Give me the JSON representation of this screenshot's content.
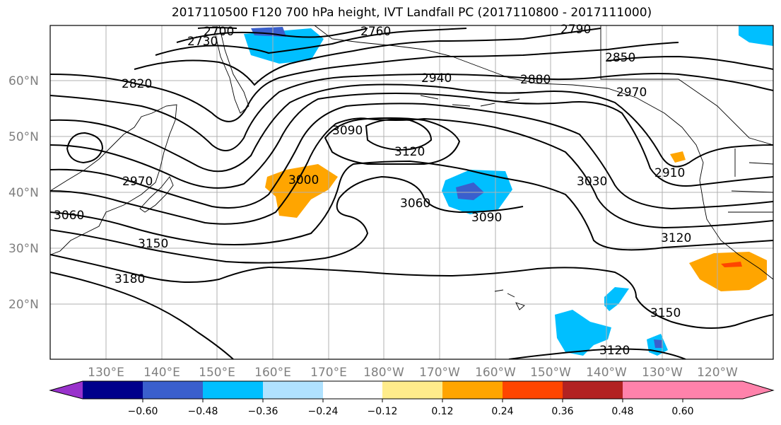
{
  "title": "2017110500 F120 700 hPa height, IVT Landfall PC (2017110800 - 2017111000)",
  "lat_labels": [
    "60°N",
    "50°N",
    "40°N",
    "30°N",
    "20°N"
  ],
  "lon_labels": [
    "130°E",
    "140°E",
    "150°E",
    "160°E",
    "170°E",
    "180°W",
    "170°W",
    "160°W",
    "150°W",
    "140°W",
    "130°W",
    "120°W"
  ],
  "contour_labels": [
    "2700",
    "2730",
    "2760",
    "2790",
    "2850",
    "2820",
    "2940",
    "2880",
    "2970",
    "3090",
    "3120",
    "3000",
    "2910",
    "3030",
    "2970",
    "3060",
    "3060",
    "3090",
    "3120",
    "3150",
    "3180",
    "3150",
    "3120"
  ],
  "colorbar": {
    "colors": [
      "#9932cc",
      "#00008b",
      "#3a5fcd",
      "#00bfff",
      "#b0e2ff",
      "#ffffff",
      "#ffec8b",
      "#ffa500",
      "#ff4500",
      "#b22222",
      "#ff82ab"
    ],
    "tick_labels": [
      "−0.60",
      "−0.48",
      "−0.36",
      "−0.24",
      "−0.12",
      "0.12",
      "0.24",
      "0.36",
      "0.48",
      "0.60"
    ]
  }
}
